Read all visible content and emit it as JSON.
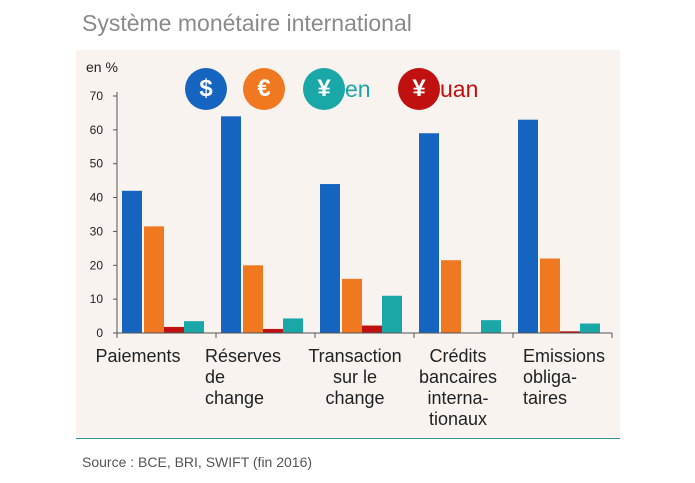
{
  "title": "Système monétaire international",
  "source": "Source : BCE, BRI, SWIFT (fin 2016)",
  "legend": [
    {
      "glyph": "$",
      "suffix": "",
      "color": "#1565c0",
      "suffix_color": "#2aa8b0"
    },
    {
      "glyph": "€",
      "suffix": "",
      "color": "#f07820",
      "suffix_color": "#2aa8b0"
    },
    {
      "glyph": "¥",
      "suffix": "en",
      "color": "#1aa7a7",
      "suffix_color": "#1aa7a7"
    },
    {
      "glyph": "¥",
      "suffix": "uan",
      "color": "#c01010",
      "suffix_color": "#c01010"
    }
  ],
  "chart_data": {
    "type": "bar",
    "ylabel": "en %",
    "ylim": [
      0,
      70
    ],
    "yticks": [
      "0",
      "10",
      "20",
      "30",
      "40",
      "50",
      "60",
      "70"
    ],
    "categories": [
      [
        "Paiements"
      ],
      [
        "Réserves",
        "de",
        "change"
      ],
      [
        "Transaction",
        "sur le",
        "change"
      ],
      [
        "Crédits",
        "bancaires",
        "interna-",
        "tionaux"
      ],
      [
        "Emissions",
        "obliga-",
        "taires"
      ]
    ],
    "series": [
      {
        "color": "#1565c0",
        "values": [
          42,
          64,
          44,
          59,
          63
        ]
      },
      {
        "color": "#f07820",
        "values": [
          31.5,
          20,
          16,
          21.5,
          22
        ]
      },
      {
        "color": "#c01010",
        "values": [
          1.8,
          1.2,
          2.2,
          0,
          0.5
        ]
      },
      {
        "color": "#1aa7a7",
        "values": [
          3.5,
          4.3,
          11,
          3.8,
          2.8
        ]
      }
    ],
    "grid": false,
    "legend_position": "top"
  }
}
